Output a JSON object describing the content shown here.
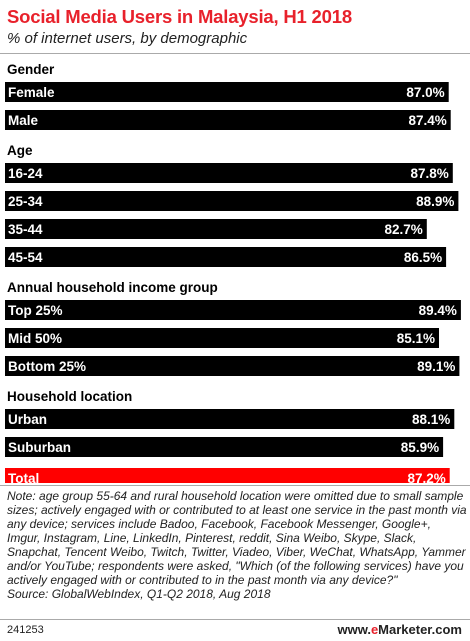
{
  "chart_data": {
    "type": "bar",
    "orientation": "horizontal",
    "title": "Social Media Users in Malaysia, H1 2018",
    "subtitle": "% of internet users, by demographic",
    "xlim": [
      0,
      100
    ],
    "unit": "%",
    "groups": [
      {
        "label": "Gender",
        "bars": [
          {
            "category": "Female",
            "value": 87.0,
            "label": "87.0%"
          },
          {
            "category": "Male",
            "value": 87.4,
            "label": "87.4%"
          }
        ]
      },
      {
        "label": "Age",
        "bars": [
          {
            "category": "16-24",
            "value": 87.8,
            "label": "87.8%"
          },
          {
            "category": "25-34",
            "value": 88.9,
            "label": "88.9%"
          },
          {
            "category": "35-44",
            "value": 82.7,
            "label": "82.7%"
          },
          {
            "category": "45-54",
            "value": 86.5,
            "label": "86.5%"
          }
        ]
      },
      {
        "label": "Annual household income group",
        "bars": [
          {
            "category": "Top 25%",
            "value": 89.4,
            "label": "89.4%"
          },
          {
            "category": "Mid 50%",
            "value": 85.1,
            "label": "85.1%"
          },
          {
            "category": "Bottom 25%",
            "value": 89.1,
            "label": "89.1%"
          }
        ]
      },
      {
        "label": "Household location",
        "bars": [
          {
            "category": "Urban",
            "value": 88.1,
            "label": "88.1%"
          },
          {
            "category": "Suburban",
            "value": 85.9,
            "label": "85.9%"
          }
        ]
      },
      {
        "label": "",
        "bars": [
          {
            "category": "Total",
            "value": 87.2,
            "label": "87.2%",
            "highlight": true
          }
        ]
      }
    ],
    "colors": {
      "bar": "#000000",
      "highlight": "#ff0000"
    }
  },
  "note": "Note: age group 55-64 and rural household location were omitted due to small sample sizes; actively engaged with or contributed to at least one service in the past month via any device; services include Badoo, Facebook, Facebook Messenger, Google+, Imgur, Instagram, Line, LinkedIn, Pinterest, reddit, Sina Weibo, Skype, Slack, Snapchat, Tencent Weibo, Twitch, Twitter, Viadeo, Viber, WeChat, WhatsApp, Yammer and/or YouTube; respondents were asked, \"Which (of the following services) have you actively engaged with or contributed to in the past month via any device?\"",
  "source": "Source: GlobalWebIndex, Q1-Q2 2018, Aug 2018",
  "footer": {
    "id": "241253",
    "brand_prefix": "www.",
    "brand_e": "e",
    "brand_suffix": "Marketer.com"
  }
}
